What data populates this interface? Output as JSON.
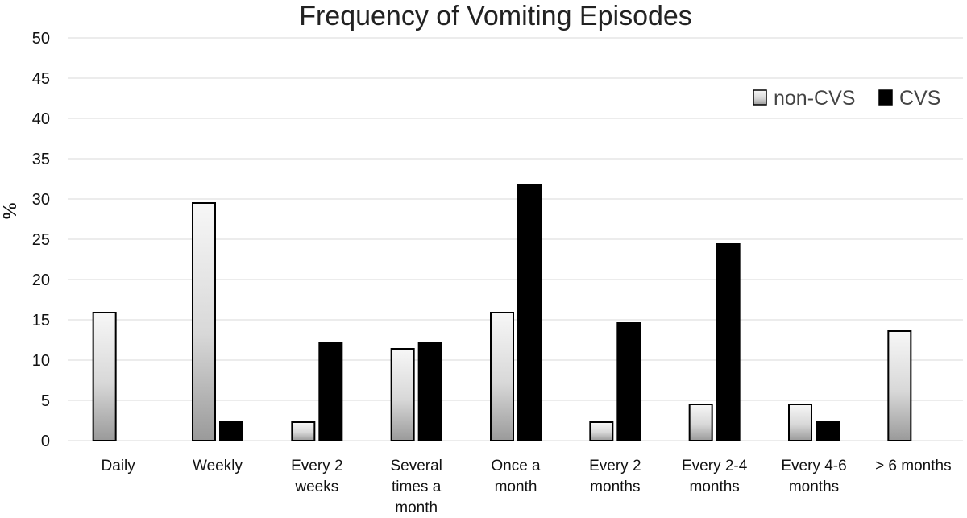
{
  "chart_data": {
    "type": "bar",
    "title": "Frequency of Vomiting Episodes",
    "xlabel": "",
    "ylabel": "%",
    "ylim": [
      0,
      50
    ],
    "yticks": [
      0,
      5,
      10,
      15,
      20,
      25,
      30,
      35,
      40,
      45,
      50
    ],
    "grid": true,
    "legend_position": "top-right",
    "categories": [
      [
        "Daily"
      ],
      [
        "Weekly"
      ],
      [
        "Every 2",
        "weeks"
      ],
      [
        "Several",
        "times a",
        "month"
      ],
      [
        "Once a",
        "month"
      ],
      [
        "Every 2",
        "months"
      ],
      [
        "Every 2-4",
        "months"
      ],
      [
        "Every 4-6",
        "months"
      ],
      [
        "> 6 months"
      ]
    ],
    "series": [
      {
        "name": "non-CVS",
        "fill": "gradient-light",
        "values": [
          15.9,
          29.5,
          2.3,
          11.4,
          15.9,
          2.3,
          4.5,
          4.5,
          13.6
        ]
      },
      {
        "name": "CVS",
        "fill": "#000000",
        "values": [
          0,
          2.4,
          12.2,
          12.2,
          31.7,
          14.6,
          24.4,
          2.4,
          0
        ]
      }
    ]
  }
}
